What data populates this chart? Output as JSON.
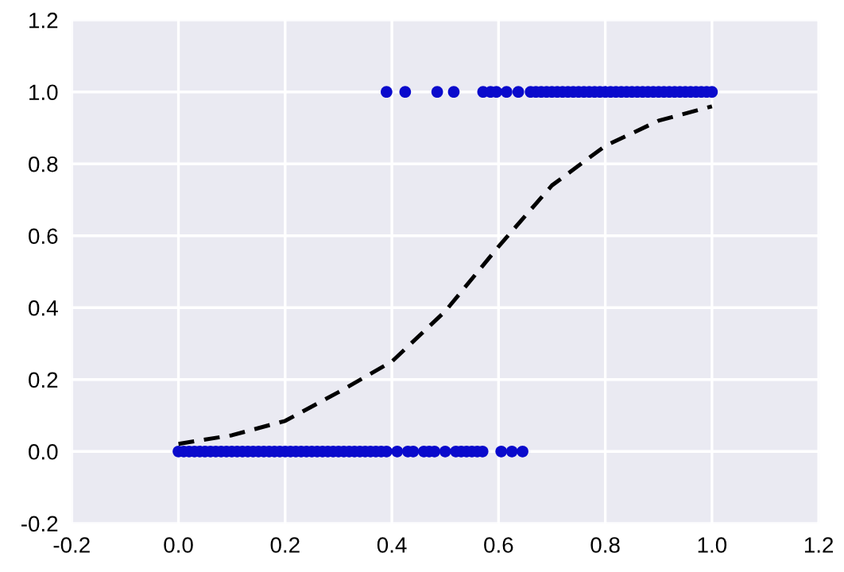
{
  "chart_data": {
    "type": "scatter",
    "series": [
      {
        "color": "#0a0acc",
        "marker": "circle",
        "x": [
          0.0,
          0.01,
          0.02,
          0.03,
          0.04,
          0.05,
          0.06,
          0.07,
          0.08,
          0.09,
          0.1,
          0.11,
          0.12,
          0.13,
          0.14,
          0.15,
          0.16,
          0.17,
          0.18,
          0.19,
          0.2,
          0.21,
          0.22,
          0.23,
          0.24,
          0.25,
          0.26,
          0.27,
          0.28,
          0.29,
          0.3,
          0.31,
          0.32,
          0.33,
          0.34,
          0.35,
          0.36,
          0.37,
          0.38,
          0.39,
          0.41,
          0.43,
          0.44,
          0.46,
          0.47,
          0.48,
          0.5,
          0.52,
          0.53,
          0.54,
          0.55,
          0.56,
          0.57,
          0.605,
          0.625,
          0.645
        ],
        "values": [
          0,
          0,
          0,
          0,
          0,
          0,
          0,
          0,
          0,
          0,
          0,
          0,
          0,
          0,
          0,
          0,
          0,
          0,
          0,
          0,
          0,
          0,
          0,
          0,
          0,
          0,
          0,
          0,
          0,
          0,
          0,
          0,
          0,
          0,
          0,
          0,
          0,
          0,
          0,
          0,
          0,
          0,
          0,
          0,
          0,
          0,
          0,
          0,
          0,
          0,
          0,
          0,
          0,
          0,
          0,
          0
        ]
      },
      {
        "color": "#0a0acc",
        "marker": "circle",
        "x": [
          0.39,
          0.425,
          0.485,
          0.516,
          0.571,
          0.585,
          0.596,
          0.615,
          0.637,
          0.66,
          0.67,
          0.68,
          0.69,
          0.7,
          0.71,
          0.72,
          0.73,
          0.74,
          0.75,
          0.76,
          0.77,
          0.78,
          0.79,
          0.8,
          0.81,
          0.82,
          0.83,
          0.84,
          0.85,
          0.86,
          0.87,
          0.88,
          0.89,
          0.9,
          0.91,
          0.92,
          0.93,
          0.94,
          0.95,
          0.96,
          0.97,
          0.98,
          0.99,
          1.0
        ],
        "values": [
          1,
          1,
          1,
          1,
          1,
          1,
          1,
          1,
          1,
          1,
          1,
          1,
          1,
          1,
          1,
          1,
          1,
          1,
          1,
          1,
          1,
          1,
          1,
          1,
          1,
          1,
          1,
          1,
          1,
          1,
          1,
          1,
          1,
          1,
          1,
          1,
          1,
          1,
          1,
          1,
          1,
          1,
          1,
          1
        ]
      },
      {
        "type": "line",
        "color": "#000000",
        "line_style": "dashed",
        "marker": "none",
        "x": [
          0.0,
          0.1,
          0.2,
          0.3,
          0.4,
          0.5,
          0.6,
          0.7,
          0.8,
          0.9,
          1.0
        ],
        "values": [
          0.021,
          0.045,
          0.085,
          0.165,
          0.25,
          0.39,
          0.57,
          0.74,
          0.85,
          0.92,
          0.96
        ]
      }
    ],
    "xlim": [
      -0.2,
      1.2
    ],
    "xticks": [
      -0.2,
      {
        "value": 0,
        "label": "0.0"
      },
      0.2,
      0.4,
      0.6,
      0.8,
      {
        "value": 1,
        "label": "1.0"
      },
      1.2
    ],
    "ylim": [
      -0.2,
      1.2
    ],
    "yticks": [
      -0.2,
      {
        "value": 0,
        "label": "0.0"
      },
      0.2,
      0.4,
      0.6,
      0.8,
      {
        "value": 1,
        "label": "1.0"
      },
      1.2
    ],
    "grid": true,
    "legend": false
  }
}
